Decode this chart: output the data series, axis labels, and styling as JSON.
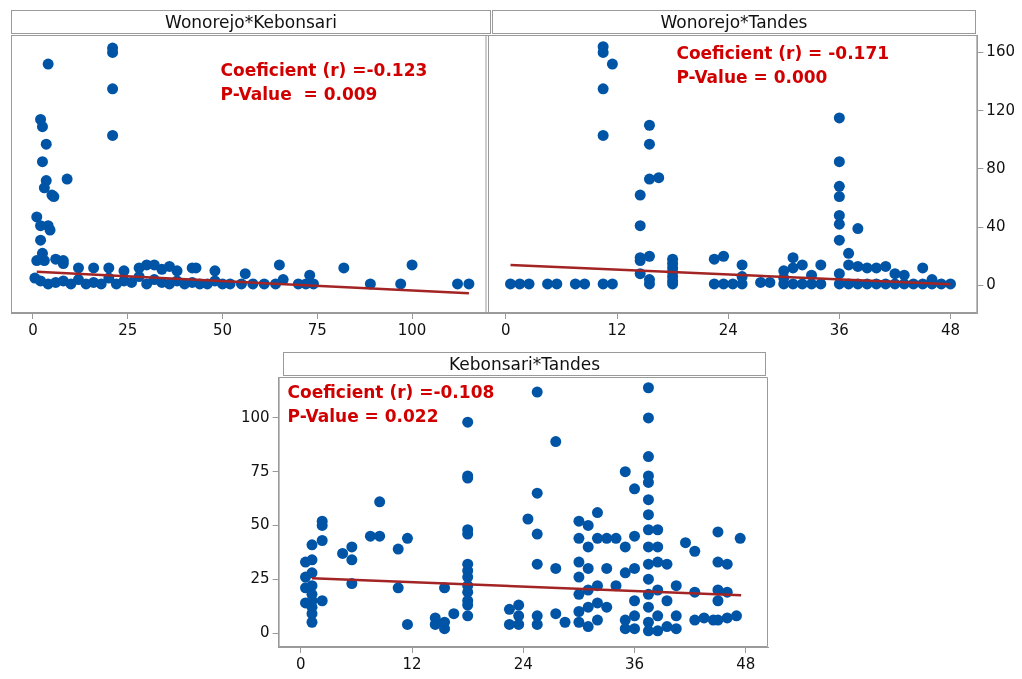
{
  "chart_data": [
    {
      "type": "scatter",
      "title": "Wonorejo*Kebonsari",
      "annotations": [
        "Coeficient (r) =-0.123",
        "P-Value  = 0.009"
      ],
      "xlim": [
        -5.8,
        120.3
      ],
      "xticks": [
        0,
        25,
        50,
        75,
        100
      ],
      "ylim": [
        -19,
        172
      ],
      "yticks": [
        0,
        40,
        80,
        120,
        160
      ],
      "tick_labels": "x",
      "grid": false,
      "legend": false,
      "marker": "circle",
      "series": [
        {
          "color": "#0054a6",
          "x": [
            21,
            21,
            4,
            21,
            21,
            2,
            2.5,
            3.5,
            2.5,
            9,
            3.5,
            3,
            5,
            5.5,
            1,
            2,
            4,
            4.5,
            2,
            2.5,
            1,
            3,
            6,
            8,
            8,
            12,
            16,
            20,
            24,
            28,
            30,
            32,
            34,
            36,
            38,
            42,
            43,
            48,
            56,
            65,
            73,
            82,
            100,
            0.5,
            2,
            4,
            6,
            8,
            10,
            12,
            14,
            16,
            18,
            20,
            22,
            24,
            26,
            28,
            30,
            32,
            34,
            36,
            38,
            40,
            42,
            44,
            46,
            48,
            50,
            52,
            55,
            58,
            61,
            64,
            66,
            70,
            72,
            74,
            89,
            97,
            112,
            115
          ],
          "values": [
            163,
            160,
            152,
            135,
            103,
            114,
            109,
            97,
            85,
            73,
            72,
            67,
            62,
            61,
            47,
            41,
            41,
            38,
            31,
            22,
            17,
            17,
            18,
            17,
            15,
            12,
            12,
            12,
            10,
            12,
            14,
            14,
            11,
            13,
            10,
            12,
            12,
            10,
            8,
            14,
            7,
            12,
            14,
            5,
            3,
            1,
            2,
            3,
            1,
            4,
            1,
            2,
            1,
            5,
            1,
            3,
            2,
            6,
            1,
            4,
            2,
            1,
            3,
            1,
            2,
            1,
            1,
            3,
            1,
            1,
            1,
            1,
            1,
            1,
            4,
            1,
            1,
            1,
            1,
            1,
            1,
            1
          ]
        },
        {
          "type": "line",
          "marker": "none",
          "color": "#a32424",
          "x": [
            1,
            115
          ],
          "values": [
            9.3,
            -5.5
          ]
        }
      ]
    },
    {
      "type": "scatter",
      "title": "Wonorejo*Tandes",
      "annotations": [
        "Coeficient (r) = -0.171",
        "P-Value = 0.000"
      ],
      "xlim": [
        -2.2,
        50.9
      ],
      "xticks": [
        0,
        12,
        24,
        36,
        48
      ],
      "ylim": [
        -19,
        172
      ],
      "yticks": [
        0,
        40,
        80,
        120,
        160
      ],
      "grid": false,
      "legend": false,
      "marker": "circle",
      "series": [
        {
          "color": "#0054a6",
          "x": [
            0.5,
            1.5,
            2.5,
            4.5,
            5.5,
            7.5,
            8.5,
            10.5,
            11.5,
            10.5,
            10.5,
            11.5,
            10.5,
            10.5,
            14.5,
            14.5,
            14.5,
            14.5,
            14.5,
            15.5,
            15.5,
            15.5,
            16.5,
            15.5,
            15.5,
            15.5,
            18,
            18,
            18,
            18,
            18,
            18,
            18,
            22.5,
            23.5,
            22.5,
            23.5,
            24.5,
            25.5,
            25.5,
            25.5,
            27.5,
            28.5,
            30,
            30,
            30,
            31,
            31,
            31,
            32,
            32,
            33,
            33,
            34,
            34,
            36,
            36,
            36,
            36,
            36,
            36,
            36,
            36,
            36,
            37,
            37,
            37,
            38,
            38,
            38,
            39,
            39,
            40,
            40,
            41,
            41,
            42,
            42,
            43,
            43,
            44,
            45,
            45,
            46,
            46,
            47,
            48
          ],
          "values": [
            1,
            1,
            1,
            1,
            1,
            1,
            1,
            1,
            1,
            164,
            160,
            152,
            135,
            103,
            62,
            41,
            19,
            17,
            8,
            110,
            97,
            73,
            74,
            20,
            4,
            1,
            18,
            15,
            12,
            9,
            6,
            3,
            1,
            18,
            20,
            1,
            1,
            1,
            14,
            6,
            1,
            2,
            2,
            10,
            5,
            1,
            19,
            12,
            1,
            14,
            1,
            7,
            1,
            14,
            1,
            115,
            85,
            68,
            61,
            48,
            42,
            31,
            8,
            1,
            22,
            14,
            1,
            39,
            13,
            1,
            12,
            1,
            12,
            1,
            13,
            1,
            8,
            1,
            7,
            1,
            1,
            12,
            1,
            4,
            1,
            1,
            1
          ]
        },
        {
          "type": "line",
          "marker": "none",
          "color": "#a32424",
          "x": [
            0.5,
            48
          ],
          "values": [
            14,
            0.7
          ]
        }
      ]
    },
    {
      "type": "scatter",
      "title": "Kebonsari*Tandes",
      "annotations": [
        "Coeficient (r) =-0.108",
        "P-Value = 0.022"
      ],
      "xlim": [
        -2.4,
        50.4
      ],
      "xticks": [
        0,
        12,
        24,
        36,
        48
      ],
      "ylim": [
        -6.5,
        119
      ],
      "yticks": [
        0,
        25,
        50,
        75,
        100
      ],
      "grid": false,
      "legend": false,
      "marker": "circle",
      "series": [
        {
          "color": "#0054a6",
          "x": [
            0.5,
            0.5,
            0.5,
            0.5,
            1.2,
            1.2,
            1.2,
            1.2,
            1.2,
            1.2,
            1.2,
            1.2,
            1.2,
            2.3,
            2.3,
            2.3,
            2.3,
            4.5,
            5.5,
            5.5,
            5.5,
            7.5,
            8.5,
            8.5,
            10.5,
            10.5,
            11.5,
            11.5,
            14.5,
            14.5,
            15.5,
            15.5,
            15.5,
            16.5,
            18,
            18,
            18,
            18,
            18,
            18,
            18,
            18,
            18,
            18,
            18,
            18,
            18,
            22.5,
            22.5,
            23.5,
            23.5,
            23.5,
            24.5,
            25.5,
            25.5,
            25.5,
            25.5,
            25.5,
            25.5,
            27.5,
            27.5,
            27.5,
            28.5,
            30,
            30,
            30,
            30,
            30,
            30,
            30,
            31,
            31,
            31,
            31,
            31,
            31,
            32,
            32,
            32,
            32,
            32,
            33,
            33,
            33,
            34,
            34,
            35,
            35,
            35,
            35,
            35,
            36,
            36,
            36,
            36,
            36,
            36,
            37.5,
            37.5,
            37.5,
            37.5,
            37.5,
            37.5,
            37.5,
            37.5,
            37.5,
            37.5,
            37.5,
            37.5,
            37.5,
            37.5,
            37.5,
            38.5,
            38.5,
            38.5,
            38.5,
            38.5,
            38.5,
            39.5,
            39.5,
            39.5,
            40.5,
            40.5,
            40.5,
            41.5,
            42.5,
            42.5,
            42.5,
            43.5,
            44.5,
            45,
            45,
            45,
            45,
            45,
            46,
            46,
            46,
            47,
            47.4
          ],
          "values": [
            33,
            26,
            21,
            14,
            41,
            34,
            28,
            22,
            18,
            15,
            12,
            9,
            5,
            52,
            50,
            43,
            15,
            37,
            40,
            34,
            23,
            45,
            45,
            61,
            39,
            21,
            44,
            4,
            7,
            4,
            5,
            2,
            21,
            9,
            98,
            73,
            72,
            48,
            46,
            32,
            29,
            26,
            22,
            19,
            15,
            13,
            8,
            11,
            4,
            13,
            8,
            4,
            53,
            112,
            65,
            46,
            32,
            8,
            4,
            89,
            30,
            9,
            5,
            52,
            44,
            33,
            26,
            18,
            10,
            5,
            50,
            40,
            30,
            20,
            12,
            3,
            56,
            44,
            22,
            14,
            6,
            44,
            30,
            12,
            44,
            22,
            75,
            40,
            28,
            6,
            2,
            67,
            45,
            30,
            15,
            8,
            2,
            114,
            100,
            82,
            73,
            70,
            62,
            55,
            48,
            40,
            32,
            25,
            18,
            12,
            5,
            1,
            48,
            40,
            33,
            20,
            8,
            1,
            32,
            15,
            3,
            22,
            8,
            2,
            42,
            38,
            19,
            6,
            7,
            6,
            47,
            33,
            20,
            15,
            6,
            32,
            19,
            7,
            8,
            44
          ]
        },
        {
          "type": "line",
          "marker": "none",
          "color": "#a32424",
          "x": [
            1.2,
            47.5
          ],
          "values": [
            25.5,
            17.5
          ]
        }
      ]
    }
  ]
}
